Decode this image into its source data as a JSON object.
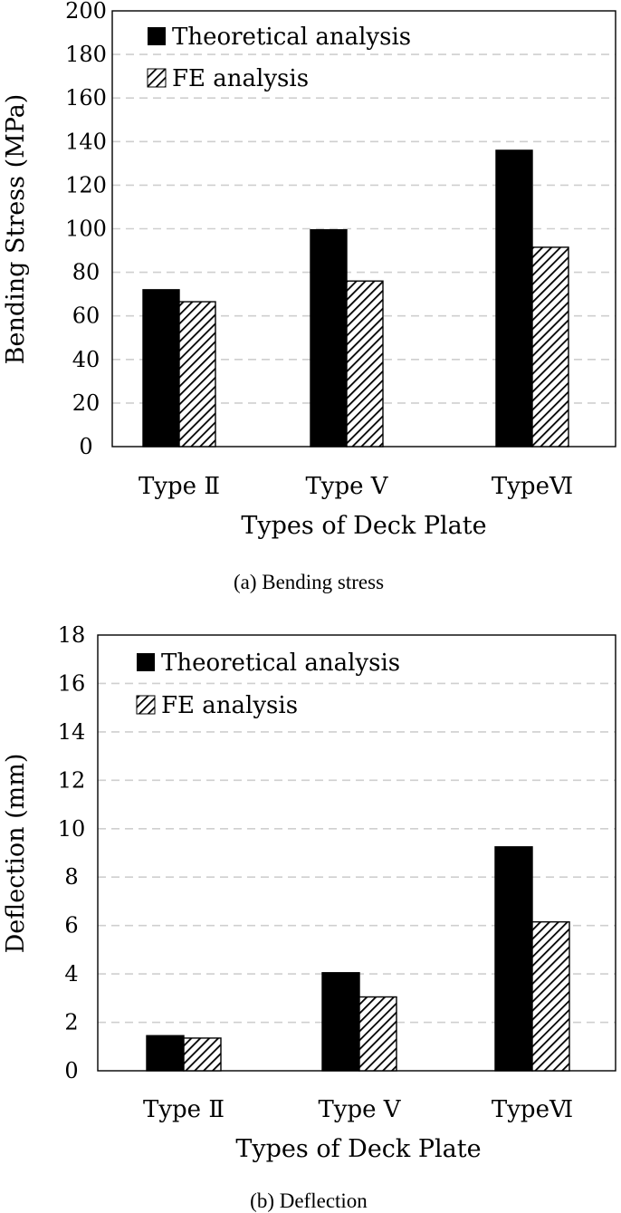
{
  "chart_data": [
    {
      "type": "bar",
      "caption": "(a) Bending stress",
      "xlabel": "Types of Deck Plate",
      "ylabel": "Bending Stress (MPa)",
      "ylim": [
        0,
        200
      ],
      "yticks": [
        0,
        20,
        40,
        60,
        80,
        100,
        120,
        140,
        160,
        180,
        200
      ],
      "grid": true,
      "legend_position": "top-left",
      "categories": [
        "Type Ⅱ",
        "Type Ⅴ",
        "TypeⅥ"
      ],
      "series": [
        {
          "name": "Theoretical analysis",
          "fill": "solid",
          "color": "#000000",
          "values": [
            72,
            99.5,
            136
          ]
        },
        {
          "name": "FE analysis",
          "fill": "hatched",
          "color": "#000000",
          "values": [
            66.5,
            76,
            91.5
          ]
        }
      ]
    },
    {
      "type": "bar",
      "caption": "(b) Deflection",
      "xlabel": "Types of Deck Plate",
      "ylabel": "Deflection (mm)",
      "ylim": [
        0,
        18
      ],
      "yticks": [
        0,
        2,
        4,
        6,
        8,
        10,
        12,
        14,
        16,
        18
      ],
      "grid": true,
      "legend_position": "top-left",
      "categories": [
        "Type Ⅱ",
        "Type Ⅴ",
        "TypeⅥ"
      ],
      "series": [
        {
          "name": "Theoretical analysis",
          "fill": "solid",
          "color": "#000000",
          "values": [
            1.45,
            4.05,
            9.25
          ]
        },
        {
          "name": "FE analysis",
          "fill": "hatched",
          "color": "#000000",
          "values": [
            1.35,
            3.05,
            6.15
          ]
        }
      ]
    }
  ]
}
